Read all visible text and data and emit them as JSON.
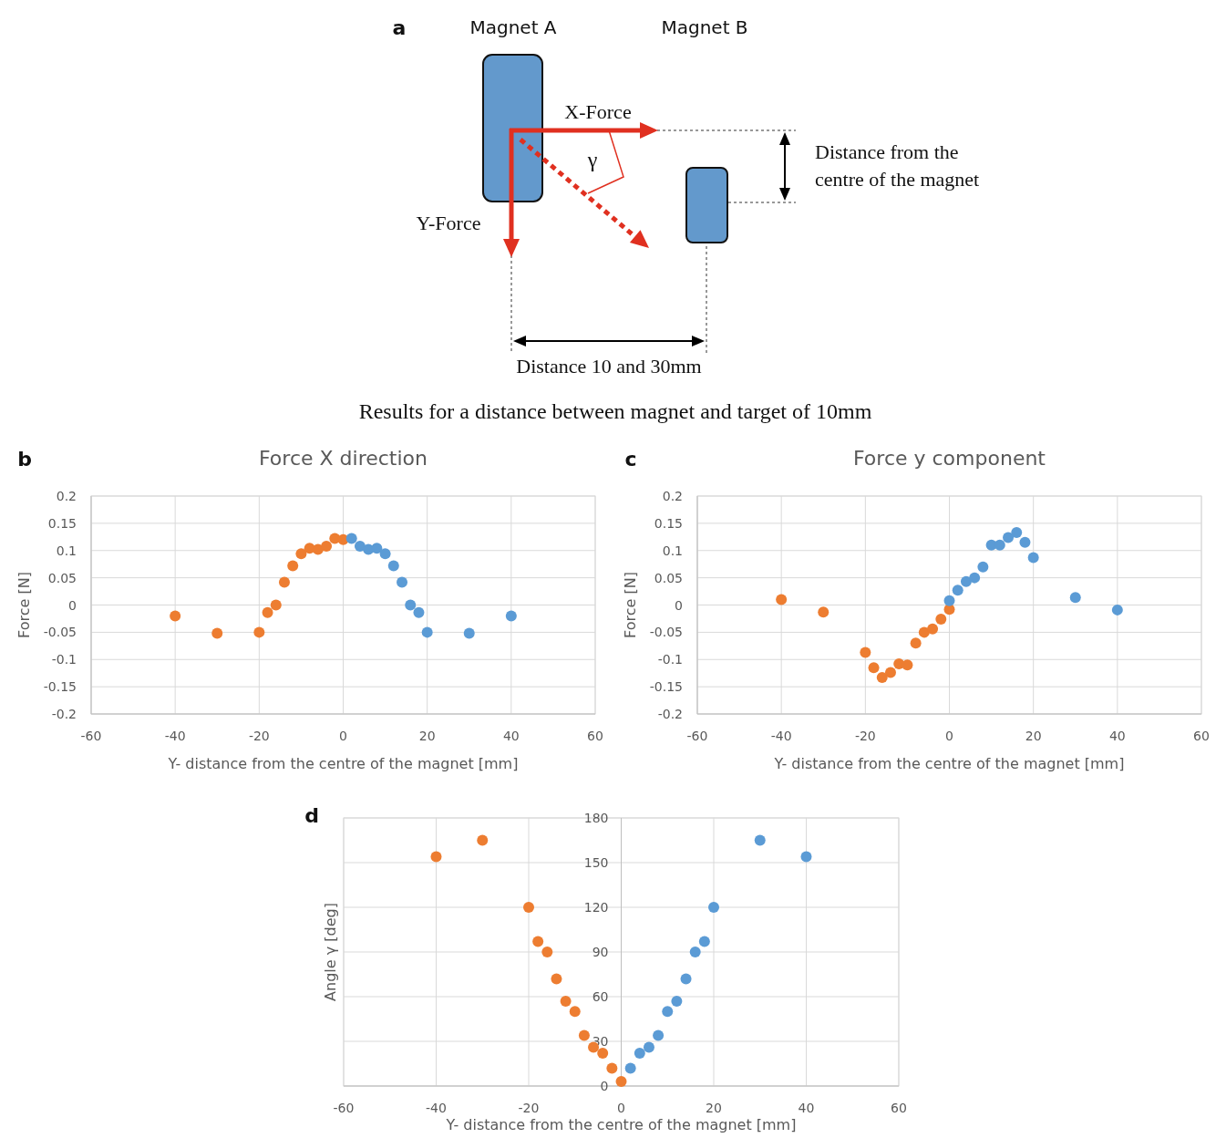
{
  "chart_data": [
    {
      "type": "other",
      "annotations": [
        "a",
        "Magnet A",
        "Magnet B",
        "X-Force",
        "Y-Force",
        "γ",
        "Distance from the centre of the magnet",
        "Distance 10 and 30mm",
        "Results for a distance between magnet and target of 10mm"
      ]
    },
    {
      "type": "scatter",
      "title": "Force X direction",
      "xlabel": "Y- distance from the centre of the magnet [mm]",
      "ylabel": "Force [N]",
      "annotations": [
        "b"
      ],
      "xlim": [
        -60,
        60
      ],
      "xticks": [
        -60,
        -40,
        -20,
        0,
        20,
        40,
        60
      ],
      "ylim": [
        -0.2,
        0.2
      ],
      "yticks": [
        -0.2,
        -0.15,
        -0.1,
        -0.05,
        0,
        0.05,
        0.1,
        0.15,
        0.2
      ],
      "grid": true,
      "marker": "circle",
      "series": [
        {
          "color": "#ed7d31",
          "x": [
            -40,
            -30,
            -20,
            -18,
            -16,
            -14,
            -12,
            -10,
            -8,
            -6,
            -4,
            -2,
            0
          ],
          "values": [
            -0.02,
            -0.052,
            -0.05,
            -0.014,
            0,
            0.042,
            0.072,
            0.094,
            0.104,
            0.102,
            0.108,
            0.122,
            0.12
          ]
        },
        {
          "color": "#5b9bd5",
          "x": [
            2,
            4,
            6,
            8,
            10,
            12,
            14,
            16,
            18,
            20,
            30,
            40
          ],
          "values": [
            0.122,
            0.108,
            0.102,
            0.104,
            0.094,
            0.072,
            0.042,
            0,
            -0.014,
            -0.05,
            -0.052,
            -0.02
          ]
        }
      ]
    },
    {
      "type": "scatter",
      "title": "Force y component",
      "xlabel": "Y- distance from the centre of the magnet [mm]",
      "ylabel": "Force [N]",
      "annotations": [
        "c"
      ],
      "xlim": [
        -60,
        60
      ],
      "xticks": [
        -60,
        -40,
        -20,
        0,
        20,
        40,
        60
      ],
      "ylim": [
        -0.2,
        0.2
      ],
      "yticks": [
        -0.2,
        -0.15,
        -0.1,
        -0.05,
        0,
        0.05,
        0.1,
        0.15,
        0.2
      ],
      "grid": true,
      "marker": "circle",
      "series": [
        {
          "color": "#ed7d31",
          "x": [
            -40,
            -30,
            -20,
            -18,
            -16,
            -14,
            -12,
            -10,
            -8,
            -6,
            -4,
            -2,
            0
          ],
          "values": [
            0.01,
            -0.013,
            -0.087,
            -0.115,
            -0.133,
            -0.124,
            -0.108,
            -0.11,
            -0.07,
            -0.05,
            -0.044,
            -0.026,
            -0.008
          ]
        },
        {
          "color": "#5b9bd5",
          "x": [
            0,
            2,
            4,
            6,
            8,
            10,
            12,
            14,
            16,
            18,
            20,
            30,
            40
          ],
          "values": [
            0.008,
            0.027,
            0.043,
            0.05,
            0.07,
            0.11,
            0.11,
            0.124,
            0.133,
            0.115,
            0.087,
            0.014,
            -0.009
          ]
        }
      ]
    },
    {
      "type": "scatter",
      "xlabel": "Y- distance from the centre of the magnet [mm]",
      "ylabel": "Angle γ [deg]",
      "annotations": [
        "d"
      ],
      "xlim": [
        -60,
        60
      ],
      "xticks": [
        -60,
        -40,
        -20,
        0,
        20,
        40,
        60
      ],
      "ylim": [
        0,
        180
      ],
      "yticks": [
        0,
        30,
        60,
        90,
        120,
        150,
        180
      ],
      "grid": true,
      "marker": "circle",
      "series": [
        {
          "color": "#ed7d31",
          "x": [
            -40,
            -30,
            -20,
            -18,
            -16,
            -14,
            -12,
            -10,
            -8,
            -6,
            -4,
            -2,
            0
          ],
          "values": [
            154,
            165,
            120,
            97,
            90,
            72,
            57,
            50,
            34,
            26,
            22,
            12,
            3
          ]
        },
        {
          "color": "#5b9bd5",
          "x": [
            2,
            4,
            6,
            8,
            10,
            12,
            14,
            16,
            18,
            20,
            30,
            40
          ],
          "values": [
            12,
            22,
            26,
            34,
            50,
            57,
            72,
            90,
            97,
            120,
            165,
            154
          ]
        }
      ]
    }
  ]
}
